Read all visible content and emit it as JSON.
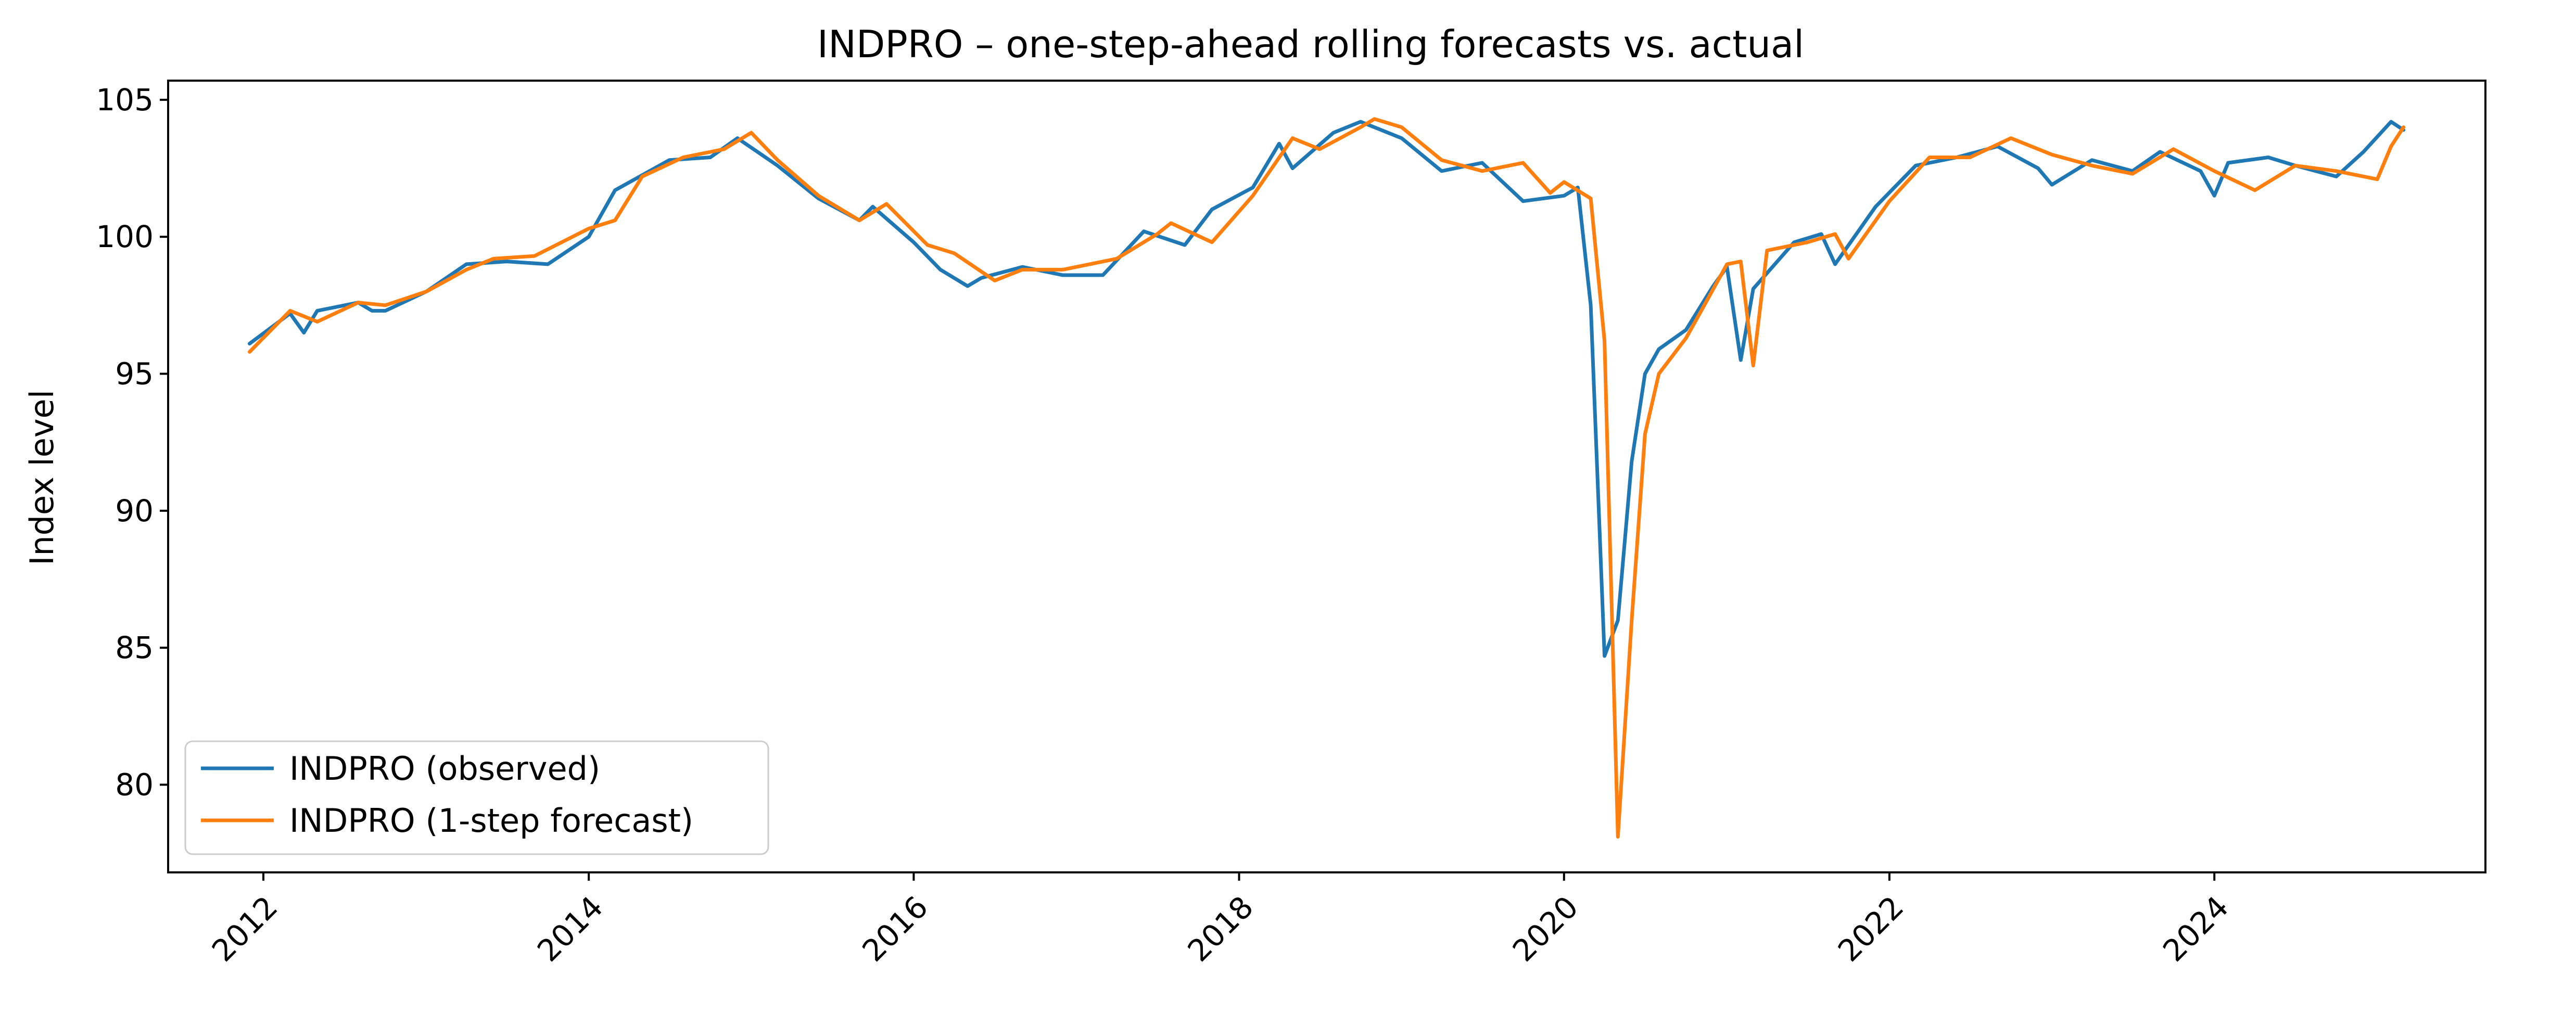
{
  "chart_data": {
    "type": "line",
    "title": "INDPRO – one-step-ahead rolling forecasts vs. actual",
    "xlabel": "",
    "ylabel": "Index level",
    "x_axis": {
      "type": "date",
      "range": [
        "2011-06-01",
        "2025-09-01"
      ],
      "ticks": [
        "2012-01-01",
        "2014-01-01",
        "2016-01-01",
        "2018-01-01",
        "2020-01-01",
        "2022-01-01",
        "2024-01-01"
      ],
      "tick_labels": [
        "2012",
        "2014",
        "2016",
        "2018",
        "2020",
        "2022",
        "2024"
      ]
    },
    "y_axis": {
      "range": [
        76.8,
        105.7
      ],
      "ticks": [
        80,
        85,
        90,
        95,
        100,
        105
      ],
      "tick_labels": [
        "80",
        "85",
        "90",
        "95",
        "100",
        "105"
      ]
    },
    "grid": false,
    "legend": {
      "placement": "lower-left"
    },
    "series": [
      {
        "name": "INDPRO (observed)",
        "color": "#1f77b4",
        "points": [
          [
            "2011-12-01",
            96.1
          ],
          [
            "2012-03-01",
            97.2
          ],
          [
            "2012-04-01",
            96.5
          ],
          [
            "2012-05-01",
            97.3
          ],
          [
            "2012-08-01",
            97.6
          ],
          [
            "2012-09-01",
            97.3
          ],
          [
            "2012-10-01",
            97.3
          ],
          [
            "2013-01-01",
            98.0
          ],
          [
            "2013-04-01",
            99.0
          ],
          [
            "2013-07-01",
            99.1
          ],
          [
            "2013-10-01",
            99.0
          ],
          [
            "2014-01-01",
            100.0
          ],
          [
            "2014-03-01",
            101.7
          ],
          [
            "2014-07-01",
            102.8
          ],
          [
            "2014-10-01",
            102.9
          ],
          [
            "2014-12-01",
            103.6
          ],
          [
            "2015-03-01",
            102.6
          ],
          [
            "2015-06-01",
            101.4
          ],
          [
            "2015-09-01",
            100.6
          ],
          [
            "2015-10-01",
            101.1
          ],
          [
            "2016-01-01",
            99.8
          ],
          [
            "2016-03-01",
            98.8
          ],
          [
            "2016-05-01",
            98.2
          ],
          [
            "2016-06-01",
            98.5
          ],
          [
            "2016-09-01",
            98.9
          ],
          [
            "2016-12-01",
            98.6
          ],
          [
            "2017-03-01",
            98.6
          ],
          [
            "2017-06-01",
            100.2
          ],
          [
            "2017-09-01",
            99.7
          ],
          [
            "2017-11-01",
            101.0
          ],
          [
            "2018-02-01",
            101.8
          ],
          [
            "2018-04-01",
            103.4
          ],
          [
            "2018-05-01",
            102.5
          ],
          [
            "2018-08-01",
            103.8
          ],
          [
            "2018-10-01",
            104.2
          ],
          [
            "2019-01-01",
            103.6
          ],
          [
            "2019-04-01",
            102.4
          ],
          [
            "2019-07-01",
            102.7
          ],
          [
            "2019-10-01",
            101.3
          ],
          [
            "2020-01-01",
            101.5
          ],
          [
            "2020-02-01",
            101.8
          ],
          [
            "2020-03-01",
            97.5
          ],
          [
            "2020-04-01",
            84.7
          ],
          [
            "2020-05-01",
            86.0
          ],
          [
            "2020-06-01",
            91.8
          ],
          [
            "2020-07-01",
            95.0
          ],
          [
            "2020-08-01",
            95.9
          ],
          [
            "2020-10-01",
            96.6
          ],
          [
            "2020-12-01",
            98.2
          ],
          [
            "2021-01-01",
            98.9
          ],
          [
            "2021-02-01",
            95.5
          ],
          [
            "2021-03-01",
            98.1
          ],
          [
            "2021-06-01",
            99.8
          ],
          [
            "2021-08-01",
            100.1
          ],
          [
            "2021-09-01",
            99.0
          ],
          [
            "2021-12-01",
            101.1
          ],
          [
            "2022-03-01",
            102.6
          ],
          [
            "2022-06-01",
            102.9
          ],
          [
            "2022-09-01",
            103.3
          ],
          [
            "2022-12-01",
            102.5
          ],
          [
            "2023-01-01",
            101.9
          ],
          [
            "2023-04-01",
            102.8
          ],
          [
            "2023-07-01",
            102.4
          ],
          [
            "2023-09-01",
            103.1
          ],
          [
            "2023-12-01",
            102.4
          ],
          [
            "2024-01-01",
            101.5
          ],
          [
            "2024-02-01",
            102.7
          ],
          [
            "2024-05-01",
            102.9
          ],
          [
            "2024-07-01",
            102.6
          ],
          [
            "2024-10-01",
            102.2
          ],
          [
            "2024-12-01",
            103.1
          ],
          [
            "2025-02-01",
            104.2
          ],
          [
            "2025-03-01",
            103.9
          ]
        ]
      },
      {
        "name": "INDPRO (1-step forecast)",
        "color": "#ff7f0e",
        "points": [
          [
            "2011-12-01",
            95.8
          ],
          [
            "2012-03-01",
            97.3
          ],
          [
            "2012-05-01",
            96.9
          ],
          [
            "2012-08-01",
            97.6
          ],
          [
            "2012-10-01",
            97.5
          ],
          [
            "2013-01-01",
            98.0
          ],
          [
            "2013-04-01",
            98.8
          ],
          [
            "2013-06-01",
            99.2
          ],
          [
            "2013-09-01",
            99.3
          ],
          [
            "2014-01-01",
            100.3
          ],
          [
            "2014-03-01",
            100.6
          ],
          [
            "2014-05-01",
            102.2
          ],
          [
            "2014-08-01",
            102.9
          ],
          [
            "2014-11-01",
            103.2
          ],
          [
            "2015-01-01",
            103.8
          ],
          [
            "2015-03-01",
            102.8
          ],
          [
            "2015-06-01",
            101.5
          ],
          [
            "2015-09-01",
            100.6
          ],
          [
            "2015-11-01",
            101.2
          ],
          [
            "2016-02-01",
            99.7
          ],
          [
            "2016-04-01",
            99.4
          ],
          [
            "2016-07-01",
            98.4
          ],
          [
            "2016-09-01",
            98.8
          ],
          [
            "2016-12-01",
            98.8
          ],
          [
            "2017-04-01",
            99.2
          ],
          [
            "2017-07-01",
            100.1
          ],
          [
            "2017-08-01",
            100.5
          ],
          [
            "2017-11-01",
            99.8
          ],
          [
            "2018-02-01",
            101.5
          ],
          [
            "2018-05-01",
            103.6
          ],
          [
            "2018-07-01",
            103.2
          ],
          [
            "2018-10-01",
            104.0
          ],
          [
            "2018-11-01",
            104.3
          ],
          [
            "2019-01-01",
            104.0
          ],
          [
            "2019-04-01",
            102.8
          ],
          [
            "2019-07-01",
            102.4
          ],
          [
            "2019-10-01",
            102.7
          ],
          [
            "2019-12-01",
            101.6
          ],
          [
            "2020-01-01",
            102.0
          ],
          [
            "2020-03-01",
            101.4
          ],
          [
            "2020-04-01",
            96.2
          ],
          [
            "2020-05-01",
            78.1
          ],
          [
            "2020-06-01",
            86.0
          ],
          [
            "2020-07-01",
            92.8
          ],
          [
            "2020-08-01",
            95.0
          ],
          [
            "2020-10-01",
            96.3
          ],
          [
            "2020-11-01",
            97.2
          ],
          [
            "2021-01-01",
            99.0
          ],
          [
            "2021-02-01",
            99.1
          ],
          [
            "2021-03-01",
            95.3
          ],
          [
            "2021-04-01",
            99.5
          ],
          [
            "2021-07-01",
            99.8
          ],
          [
            "2021-09-01",
            100.1
          ],
          [
            "2021-10-01",
            99.2
          ],
          [
            "2022-01-01",
            101.3
          ],
          [
            "2022-04-01",
            102.9
          ],
          [
            "2022-07-01",
            102.9
          ],
          [
            "2022-10-01",
            103.6
          ],
          [
            "2023-01-01",
            103.0
          ],
          [
            "2023-04-01",
            102.6
          ],
          [
            "2023-07-01",
            102.3
          ],
          [
            "2023-10-01",
            103.2
          ],
          [
            "2024-01-01",
            102.4
          ],
          [
            "2024-04-01",
            101.7
          ],
          [
            "2024-07-01",
            102.6
          ],
          [
            "2024-10-01",
            102.4
          ],
          [
            "2025-01-01",
            102.1
          ],
          [
            "2025-02-01",
            103.3
          ],
          [
            "2025-03-01",
            104.0
          ]
        ]
      }
    ]
  }
}
